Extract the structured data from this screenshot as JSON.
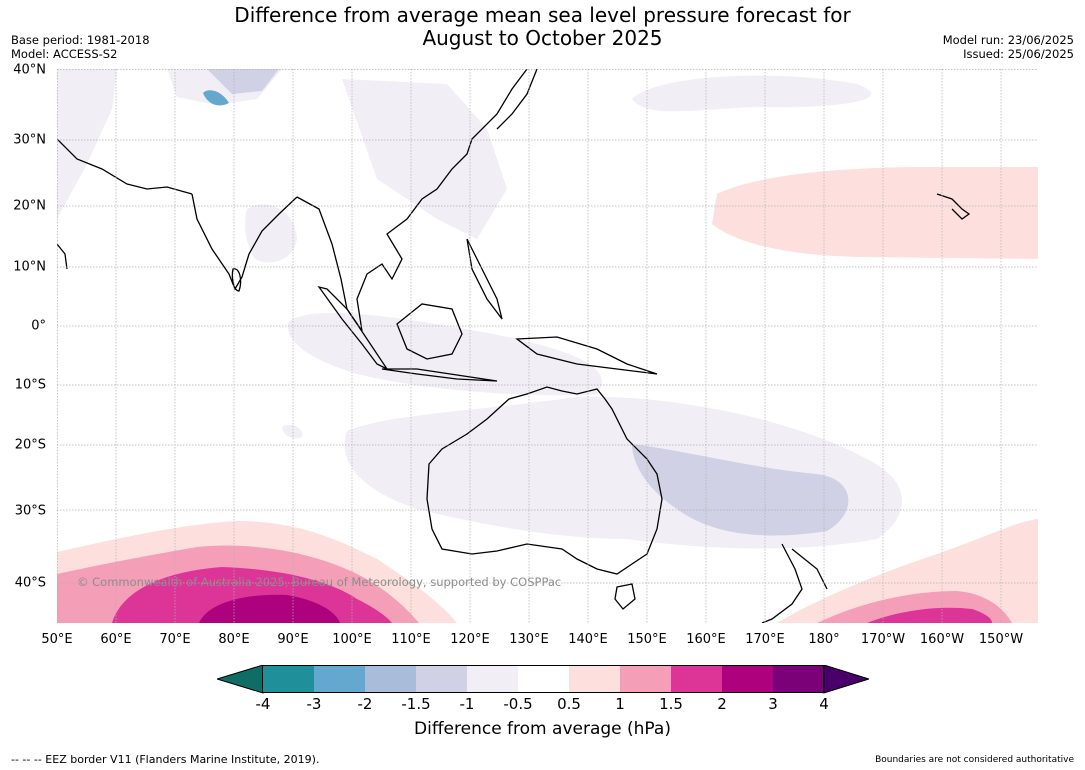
{
  "title": {
    "line1": "Difference from average mean sea level pressure forecast for",
    "line2": "August to October 2025"
  },
  "meta": {
    "base_period": "Base period: 1981-2018",
    "model": "Model: ACCESS-S2",
    "model_run": "Model run: 23/06/2025",
    "issued": "Issued: 25/06/2025"
  },
  "map": {
    "lat_labels": [
      "40°N",
      "30°N",
      "20°N",
      "10°N",
      "0°",
      "10°S",
      "20°S",
      "30°S",
      "40°S"
    ],
    "lon_labels": [
      "50°E",
      "60°E",
      "70°E",
      "80°E",
      "90°E",
      "100°E",
      "110°E",
      "120°E",
      "130°E",
      "140°E",
      "150°E",
      "160°E",
      "170°E",
      "180°",
      "170°W",
      "160°W",
      "150°W"
    ],
    "credit": "© Commonwealth of Australia 2025, Bureau of Meteorology, supported by COSPPac",
    "background": "#ffffff",
    "gridlines": true
  },
  "legend": {
    "ticks": [
      "-4",
      "-3",
      "-2",
      "-1.5",
      "-1",
      "-0.5",
      "0.5",
      "1",
      "1.5",
      "2",
      "3",
      "4"
    ],
    "colors": [
      "#0e6e66",
      "#1f8f99",
      "#64a8cf",
      "#a9bcd9",
      "#d0d1e4",
      "#f1eef6",
      "#ffffff",
      "#fde0de",
      "#f59eb8",
      "#dd3497",
      "#ae017e",
      "#7a0177",
      "#49006a"
    ],
    "label": "Difference from average (hPa)"
  },
  "footer": {
    "left": "--  --  -- EEZ border V11 (Flanders Marine Institute, 2019).",
    "right": "Boundaries are not considered authoritative"
  }
}
